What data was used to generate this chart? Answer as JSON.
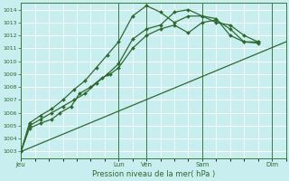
{
  "bg_color": "#c8eef0",
  "grid_color": "#ffffff",
  "line_color": "#2d6a2d",
  "xlabel": "Pression niveau de la mer( hPa )",
  "ylim": [
    1002.5,
    1014.5
  ],
  "yticks": [
    1003,
    1004,
    1005,
    1006,
    1007,
    1008,
    1009,
    1010,
    1011,
    1012,
    1013,
    1014
  ],
  "x_day_labels": [
    "Jeu",
    "Lun",
    "Ven",
    "Sam",
    "Dim"
  ],
  "x_day_positions": [
    0.0,
    3.5,
    4.5,
    6.5,
    9.0
  ],
  "xlim": [
    0.0,
    9.5
  ],
  "trend_x": [
    0.0,
    9.5
  ],
  "trend_y": [
    1003.0,
    1011.5
  ],
  "series1_x": [
    0.0,
    0.3,
    0.7,
    1.1,
    1.4,
    1.8,
    2.1,
    2.5,
    2.9,
    3.2,
    3.5,
    4.0,
    4.5,
    5.0,
    5.5,
    6.0,
    6.5,
    7.0,
    7.5,
    8.0,
    8.5
  ],
  "series1_y": [
    1003.0,
    1004.8,
    1005.2,
    1005.5,
    1006.0,
    1006.5,
    1007.5,
    1008.0,
    1008.7,
    1009.0,
    1009.5,
    1011.0,
    1012.0,
    1012.5,
    1012.8,
    1012.2,
    1013.0,
    1013.2,
    1012.5,
    1011.5,
    1011.4
  ],
  "series2_x": [
    0.0,
    0.3,
    0.7,
    1.1,
    1.5,
    1.9,
    2.3,
    2.7,
    3.1,
    3.5,
    4.0,
    4.5,
    5.0,
    5.5,
    6.0,
    6.5,
    7.0,
    7.5,
    8.0,
    8.5
  ],
  "series2_y": [
    1003.0,
    1005.0,
    1005.5,
    1006.0,
    1006.5,
    1007.0,
    1007.5,
    1008.3,
    1009.0,
    1009.8,
    1011.7,
    1012.5,
    1012.8,
    1013.8,
    1014.0,
    1013.5,
    1013.0,
    1012.8,
    1012.0,
    1011.5
  ],
  "series3_x": [
    0.0,
    0.3,
    0.7,
    1.1,
    1.5,
    1.9,
    2.3,
    2.7,
    3.1,
    3.5,
    4.0,
    4.5,
    5.0,
    5.5,
    6.0,
    6.5,
    7.0,
    7.5,
    8.0,
    8.5
  ],
  "series3_y": [
    1003.0,
    1005.2,
    1005.8,
    1006.3,
    1007.0,
    1007.8,
    1008.5,
    1009.5,
    1010.5,
    1011.5,
    1013.5,
    1014.3,
    1013.8,
    1013.0,
    1013.5,
    1013.5,
    1013.3,
    1012.0,
    1011.5,
    1011.5
  ]
}
